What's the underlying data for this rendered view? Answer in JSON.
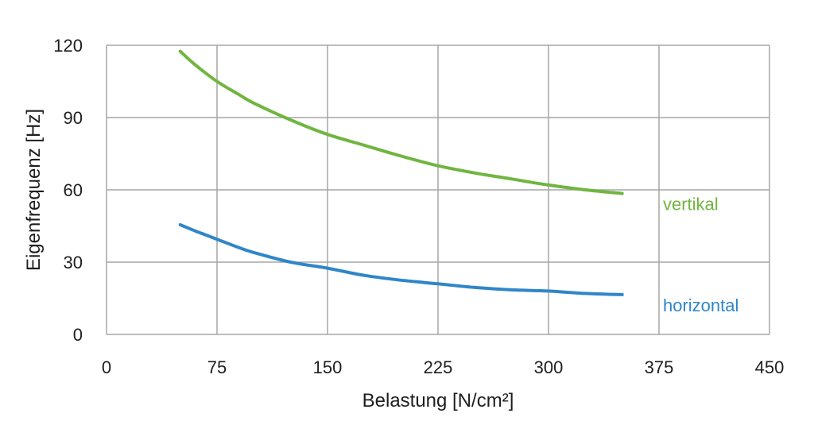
{
  "chart_data": {
    "type": "line",
    "title": "",
    "xlabel": "Belastung [N/cm²]",
    "ylabel": "Eigenfrequenz [Hz]",
    "xlim": [
      0,
      450
    ],
    "ylim": [
      0,
      120
    ],
    "xticks": [
      0,
      75,
      150,
      225,
      300,
      375,
      450
    ],
    "yticks": [
      0,
      30,
      60,
      90,
      120
    ],
    "grid": true,
    "legend": "inline-right",
    "series": [
      {
        "name": "vertikal",
        "color": "#70b540",
        "x": [
          50,
          60,
          75,
          90,
          100,
          125,
          150,
          175,
          200,
          225,
          250,
          275,
          300,
          325,
          350
        ],
        "y": [
          117.5,
          112,
          105,
          99.5,
          96,
          89,
          83,
          78.5,
          74,
          70,
          67,
          64.5,
          62,
          60,
          58.5
        ]
      },
      {
        "name": "horizontal",
        "color": "#2f86c8",
        "x": [
          50,
          60,
          75,
          90,
          100,
          125,
          150,
          175,
          200,
          225,
          250,
          275,
          300,
          325,
          350
        ],
        "y": [
          45.5,
          43,
          39.5,
          36,
          34,
          30,
          27.5,
          24.5,
          22.5,
          21,
          19.5,
          18.5,
          18,
          17,
          16.5
        ]
      }
    ]
  }
}
